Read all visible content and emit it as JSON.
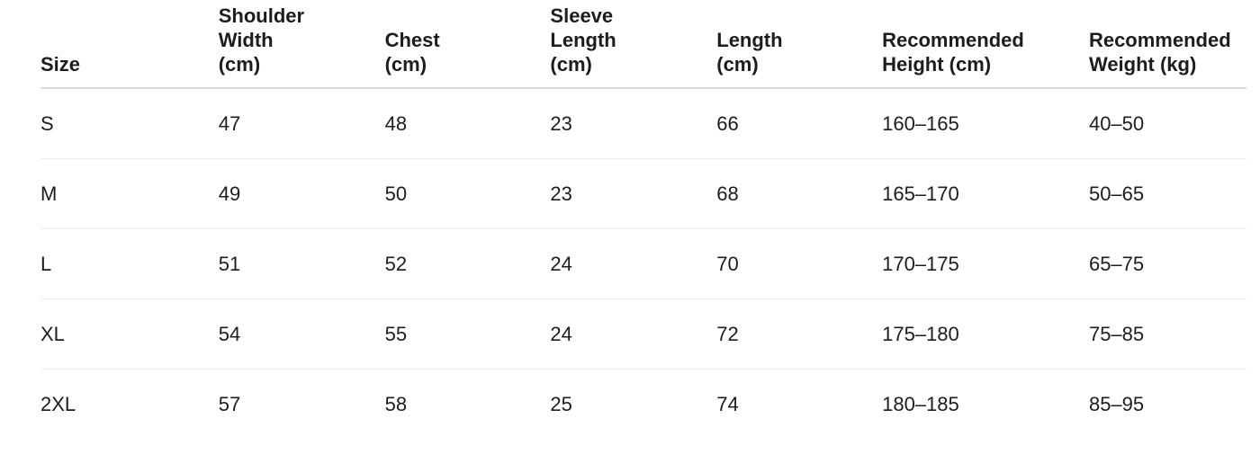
{
  "table": {
    "headers": [
      "Size",
      "Shoulder Width (cm)",
      "Chest (cm)",
      "Sleeve Length (cm)",
      "Length (cm)",
      "Recommended Height (cm)",
      "Recommended Weight (kg)"
    ],
    "rows": [
      [
        "S",
        "47",
        "48",
        "23",
        "66",
        "160–165",
        "40–50"
      ],
      [
        "M",
        "49",
        "50",
        "23",
        "68",
        "165–170",
        "50–65"
      ],
      [
        "L",
        "51",
        "52",
        "24",
        "70",
        "170–175",
        "65–75"
      ],
      [
        "XL",
        "54",
        "55",
        "24",
        "72",
        "175–180",
        "75–85"
      ],
      [
        "2XL",
        "57",
        "58",
        "25",
        "74",
        "180–185",
        "85–95"
      ]
    ]
  }
}
